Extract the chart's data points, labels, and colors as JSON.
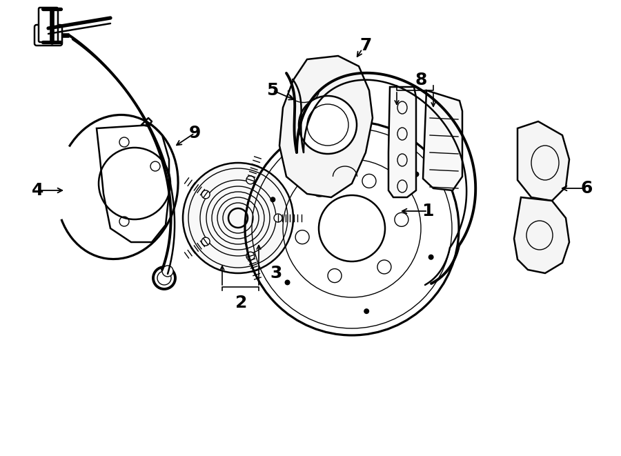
{
  "bg_color": "#ffffff",
  "line_color": "#000000",
  "lw": 1.8,
  "tlw": 1.0,
  "figsize": [
    9.0,
    6.61
  ],
  "dpi": 100,
  "label_fontsize": 18
}
